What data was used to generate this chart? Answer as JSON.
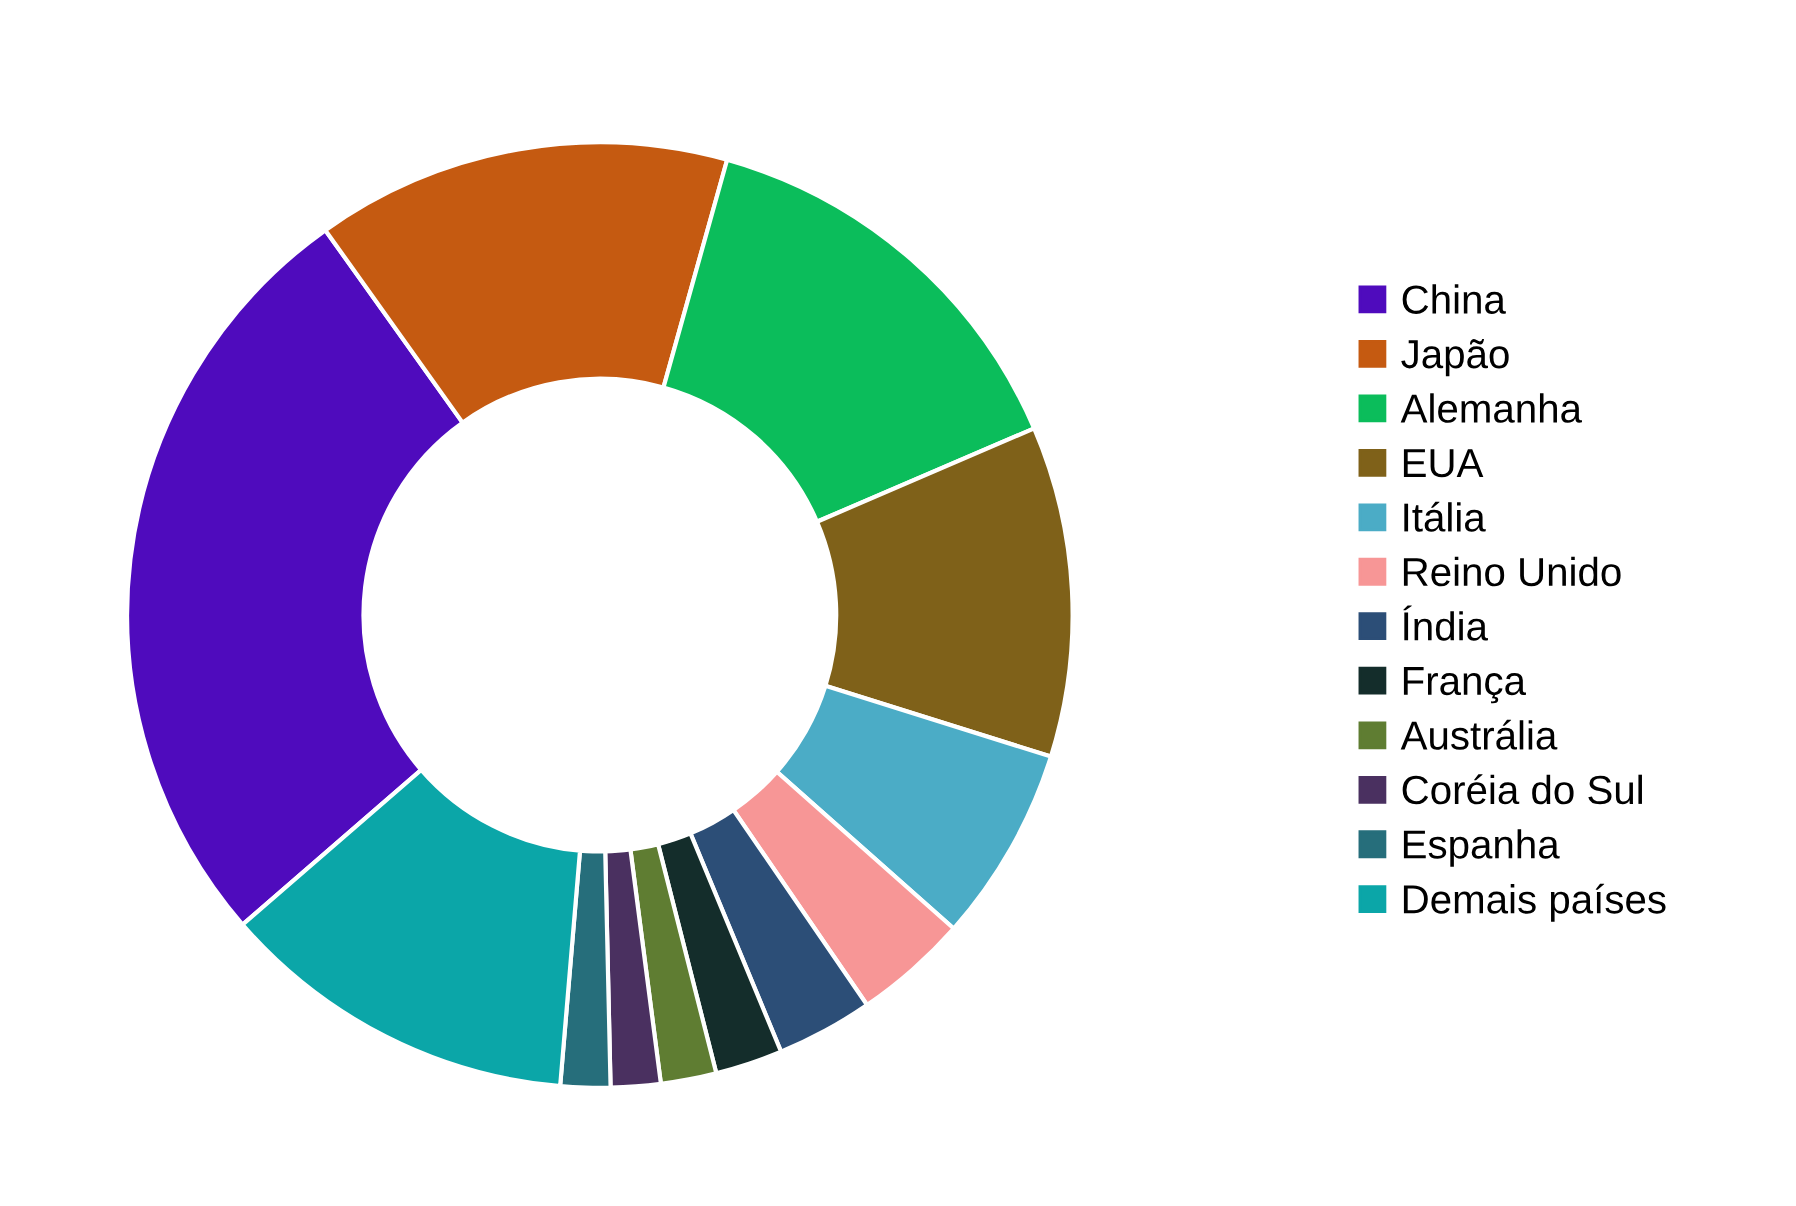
{
  "chart_data": {
    "type": "donut",
    "categories": [
      "China",
      "Japão",
      "Alemanha",
      "EUA",
      "Itália",
      "Reino Unido",
      "Índia",
      "França",
      "Austrália",
      "Coréia do Sul",
      "Espanha",
      "Demais países"
    ],
    "values": [
      26.5,
      14.2,
      14.2,
      11.3,
      6.7,
      3.9,
      3.3,
      2.3,
      1.9,
      1.7,
      1.7,
      12.3
    ],
    "colors": [
      "#4f0bbd",
      "#c55a11",
      "#0bbd5b",
      "#7f6119",
      "#4bacc6",
      "#f79696",
      "#2c4e77",
      "#142d2b",
      "#5f7d32",
      "#4a3060",
      "#266e7b",
      "#0ba6a8"
    ],
    "legend": "right"
  }
}
